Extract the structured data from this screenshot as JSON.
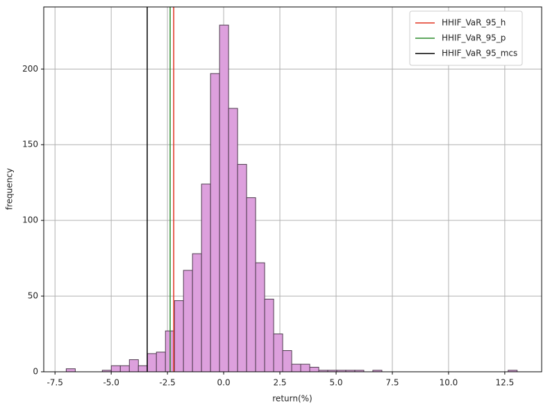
{
  "chart_data": {
    "type": "histogram",
    "xlabel": "return(%)",
    "ylabel": "frequency",
    "bins": [
      -7,
      -6.599,
      -6.198,
      -5.797,
      -5.396,
      -4.995,
      -4.594,
      -4.193,
      -3.792,
      -3.391,
      -2.99,
      -2.589,
      -2.188,
      -1.787,
      -1.386,
      -0.985,
      -0.584,
      -0.183,
      0.218,
      0.619,
      1.02,
      1.421,
      1.822,
      2.223,
      2.624,
      3.025,
      3.426,
      3.827,
      4.228,
      4.629,
      5.03,
      5.431,
      5.832,
      6.233,
      6.634,
      7.035,
      7.436,
      7.837,
      8.238,
      8.639,
      9.04,
      9.441,
      9.842,
      10.243,
      10.644,
      11.045,
      11.446,
      11.847,
      12.248,
      12.649,
      13.05
    ],
    "values": [
      2,
      0,
      0,
      0,
      1,
      4,
      4,
      8,
      4,
      12,
      13,
      27,
      47,
      67,
      78,
      124,
      197,
      229,
      174,
      137,
      115,
      72,
      48,
      25,
      14,
      5,
      5,
      3,
      1,
      1,
      1,
      1,
      1,
      0,
      1,
      0,
      0,
      0,
      0,
      0,
      0,
      0,
      0,
      0,
      0,
      0,
      0,
      0,
      0,
      1
    ],
    "color": "#dda0dd",
    "edgecolor": "#4d3a4d",
    "vlines": [
      {
        "name": "HHIF_VaR_95_h",
        "color": "#e0301e",
        "x": -2.22
      },
      {
        "name": "HHIF_VaR_95_p",
        "color": "#2a8a2a",
        "x": -2.38
      },
      {
        "name": "HHIF_VaR_95_mcs",
        "color": "#000000",
        "x": -3.4
      }
    ],
    "xlim": [
      -8.0,
      14.14
    ],
    "ylim": [
      0,
      241
    ],
    "xticks": [
      -7.5,
      {
        "value": -5,
        "label": "-5.0"
      },
      -2.5,
      {
        "value": 0,
        "label": "0.0"
      },
      2.5,
      {
        "value": 5,
        "label": "5.0"
      },
      7.5,
      {
        "value": 10,
        "label": "10.0"
      },
      12.5
    ],
    "yticks": [
      0,
      50,
      100,
      150,
      200
    ],
    "grid": true,
    "legend": "upper right"
  }
}
